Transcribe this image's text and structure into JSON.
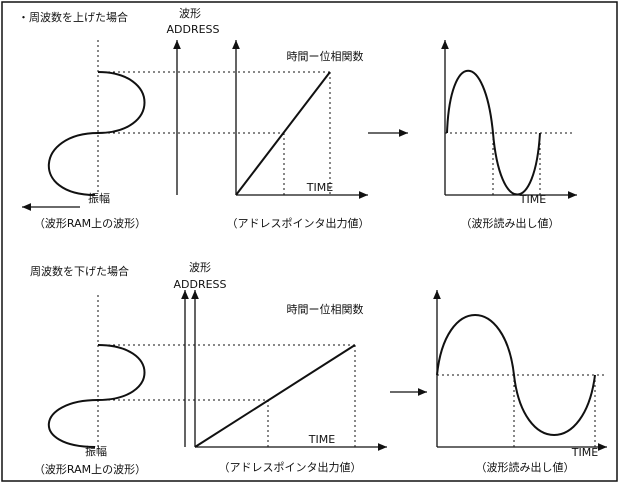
{
  "panels": [
    {
      "heading": "・周波数を上げた場合",
      "axis_label": "波形",
      "axis_sublabel": "ADDRESS",
      "phase_label": "時間ー位相関数",
      "amplitude_label": "振幅",
      "ram_caption": "（波形RAM上の波形）",
      "pointer_time": "TIME",
      "pointer_caption": "（アドレスポインタ出力値）",
      "output_time": "TIME",
      "output_caption": "（波形読み出し値）"
    },
    {
      "heading": "周波数を下げた場合",
      "axis_label": "波形",
      "axis_sublabel": "ADDRESS",
      "phase_label": "時間ー位相関数",
      "amplitude_label": "振幅",
      "ram_caption": "（波形RAM上の波形）",
      "pointer_time": "TIME",
      "pointer_caption": "（アドレスポインタ出力値）",
      "output_time": "TIME",
      "output_caption": "（波形読み出し値）"
    }
  ]
}
